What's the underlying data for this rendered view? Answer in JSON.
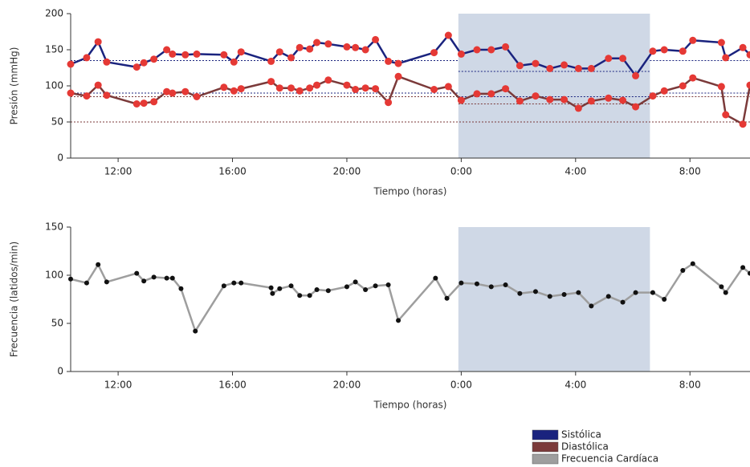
{
  "chart_data": [
    {
      "type": "line",
      "ylabel": "Presión (mmHg)",
      "xlabel": "Tiempo (horas)",
      "xlim": [
        10.34,
        34.1
      ],
      "ylim": [
        0,
        200
      ],
      "xticks": [
        {
          "value": 12,
          "label": "12:00"
        },
        {
          "value": 16,
          "label": "16:00"
        },
        {
          "value": 20,
          "label": "20:00"
        },
        {
          "value": 24,
          "label": "0:00"
        },
        {
          "value": 28,
          "label": "4:00"
        },
        {
          "value": 32,
          "label": "8:00"
        }
      ],
      "yticks": [
        0,
        50,
        100,
        150,
        200
      ],
      "shaded": [
        23.9,
        30.6
      ],
      "shade_color": "#cfd8e6",
      "reference_lines": [
        {
          "value": 135,
          "x": [
            10.34,
            23.9
          ],
          "color": "#1a237e"
        },
        {
          "value": 120,
          "x": [
            23.9,
            30.6
          ],
          "color": "#1a237e"
        },
        {
          "value": 135,
          "x": [
            30.6,
            34.1
          ],
          "color": "#1a237e"
        },
        {
          "value": 90,
          "x": [
            10.34,
            23.9
          ],
          "color": "#1a237e"
        },
        {
          "value": 85,
          "x": [
            10.34,
            23.9
          ],
          "color": "#7b3a3a"
        },
        {
          "value": 85,
          "x": [
            23.9,
            30.6
          ],
          "color": "#1a237e"
        },
        {
          "value": 75,
          "x": [
            23.9,
            30.6
          ],
          "color": "#7b3a3a"
        },
        {
          "value": 90,
          "x": [
            30.6,
            34.1
          ],
          "color": "#1a237e"
        },
        {
          "value": 85,
          "x": [
            30.6,
            34.1
          ],
          "color": "#7b3a3a"
        },
        {
          "value": 50,
          "x": [
            10.34,
            34.1
          ],
          "color": "#7b3a3a"
        }
      ],
      "x": [
        10.34,
        10.9,
        11.3,
        11.6,
        12.65,
        12.9,
        13.25,
        13.7,
        13.9,
        14.35,
        14.75,
        15.7,
        16.05,
        16.3,
        17.35,
        17.65,
        18.05,
        18.35,
        18.7,
        18.95,
        19.35,
        20.0,
        20.3,
        20.65,
        21.0,
        21.45,
        21.8,
        23.05,
        23.55,
        24.0,
        24.55,
        25.05,
        25.55,
        26.05,
        26.6,
        27.1,
        27.6,
        28.1,
        28.55,
        29.15,
        29.65,
        30.1,
        30.7,
        31.1,
        31.75,
        32.1,
        33.1,
        33.25,
        33.85,
        34.1
      ],
      "series": [
        {
          "name": "Sistólica",
          "color": "#1a237e",
          "marker_color": "#e53935",
          "values": [
            130,
            139,
            161,
            133,
            126,
            132,
            137,
            150,
            144,
            143,
            144,
            143,
            133,
            147,
            134,
            147,
            139,
            153,
            151,
            160,
            158,
            154,
            153,
            150,
            164,
            134,
            131,
            146,
            170,
            144,
            150,
            150,
            154,
            128,
            131,
            124,
            129,
            124,
            124,
            138,
            138,
            114,
            148,
            150,
            148,
            163,
            160,
            139,
            153,
            143
          ]
        },
        {
          "name": "Diastólica",
          "color": "#7b3a3a",
          "marker_color": "#e53935",
          "values": [
            90,
            86,
            101,
            87,
            75,
            76,
            78,
            92,
            90,
            92,
            85,
            98,
            93,
            96,
            106,
            97,
            97,
            93,
            97,
            101,
            108,
            101,
            95,
            97,
            96,
            77,
            113,
            95,
            99,
            80,
            89,
            89,
            96,
            79,
            86,
            81,
            81,
            69,
            79,
            83,
            80,
            71,
            86,
            93,
            100,
            111,
            99,
            60,
            47,
            101
          ]
        }
      ]
    },
    {
      "type": "line",
      "ylabel": "Frecuencia (latidos/min)",
      "xlabel": "Tiempo (horas)",
      "xlim": [
        10.34,
        34.1
      ],
      "ylim": [
        0,
        150
      ],
      "xticks": [
        {
          "value": 12,
          "label": "12:00"
        },
        {
          "value": 16,
          "label": "16:00"
        },
        {
          "value": 20,
          "label": "20:00"
        },
        {
          "value": 24,
          "label": "0:00"
        },
        {
          "value": 28,
          "label": "4:00"
        },
        {
          "value": 32,
          "label": "8:00"
        }
      ],
      "yticks": [
        0,
        50,
        100,
        150
      ],
      "shaded": [
        23.9,
        30.6
      ],
      "shade_color": "#cfd8e6",
      "x": [
        10.34,
        10.9,
        11.3,
        11.6,
        12.65,
        12.9,
        13.25,
        13.7,
        13.9,
        14.2,
        14.7,
        15.7,
        16.05,
        16.3,
        17.35,
        17.4,
        17.65,
        18.05,
        18.35,
        18.7,
        18.95,
        19.35,
        20.0,
        20.3,
        20.65,
        21.0,
        21.45,
        21.8,
        23.1,
        23.5,
        24.0,
        24.55,
        25.05,
        25.55,
        26.05,
        26.6,
        27.1,
        27.6,
        28.1,
        28.55,
        29.15,
        29.65,
        30.1,
        30.7,
        31.1,
        31.75,
        32.1,
        33.1,
        33.25,
        33.85,
        34.1
      ],
      "series": [
        {
          "name": "Frecuencia Cardíaca",
          "color": "#9e9e9e",
          "marker_color": "#111111",
          "values": [
            96,
            92,
            111,
            93,
            102,
            94,
            98,
            97,
            97,
            86,
            42,
            89,
            92,
            92,
            87,
            81,
            86,
            89,
            79,
            79,
            85,
            84,
            88,
            93,
            85,
            89,
            90,
            53,
            97,
            76,
            92,
            91,
            88,
            90,
            81,
            83,
            78,
            80,
            82,
            68,
            78,
            72,
            82,
            82,
            75,
            105,
            112,
            88,
            82,
            108,
            102
          ]
        }
      ]
    }
  ]
}
